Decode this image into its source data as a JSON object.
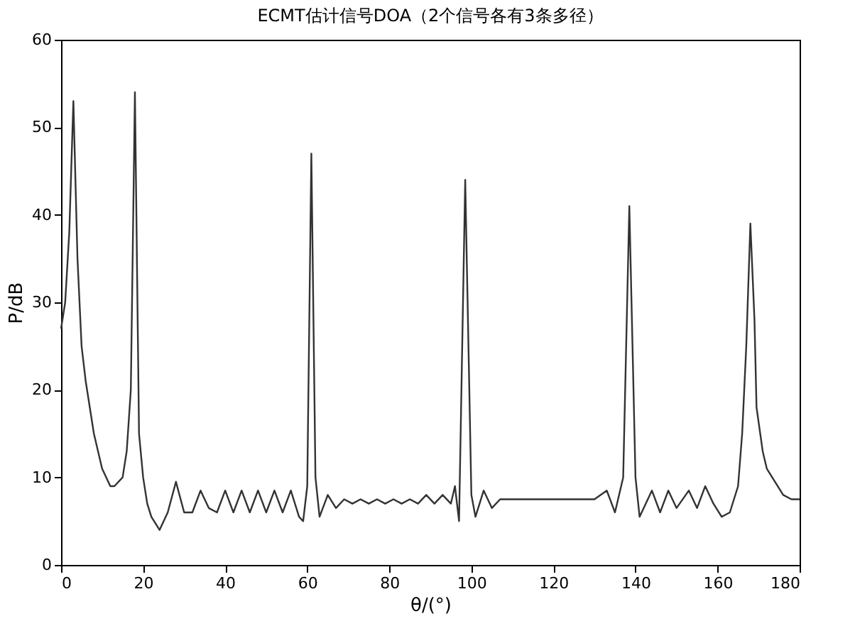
{
  "chart_data": {
    "type": "line",
    "title": "ECMT估计信号DOA（2个信号各有3条多径）",
    "xlabel": "θ/(°)",
    "ylabel": "P/dB",
    "xlim": [
      0,
      180
    ],
    "xticks": [
      0,
      20,
      40,
      60,
      80,
      100,
      120,
      140,
      160,
      180
    ],
    "ylim": [
      0,
      60
    ],
    "yticks": [
      0,
      10,
      20,
      30,
      40,
      50,
      60
    ],
    "grid": false,
    "series": [
      {
        "color": "#333333",
        "x": [
          0,
          1,
          2,
          3,
          4,
          5,
          6,
          8,
          10,
          12,
          13,
          15,
          16,
          17,
          18,
          19,
          20,
          21,
          22,
          24,
          26,
          28,
          30,
          32,
          34,
          36,
          38,
          40,
          42,
          44,
          46,
          48,
          50,
          52,
          54,
          56,
          58,
          59,
          60,
          61,
          62,
          63,
          65,
          67,
          69,
          71,
          73,
          75,
          77,
          79,
          81,
          83,
          85,
          87,
          89,
          91,
          93,
          95,
          96,
          97,
          98.5,
          100,
          101,
          103,
          105,
          107,
          110,
          115,
          120,
          125,
          130,
          133,
          135,
          137,
          138.5,
          140,
          141,
          144,
          146,
          148,
          150,
          153,
          155,
          157,
          159,
          161,
          163,
          165,
          166,
          167,
          168,
          169,
          169.5,
          171,
          172,
          174,
          176,
          178,
          180
        ],
        "values": [
          27,
          30,
          38,
          53,
          35,
          25,
          21,
          15,
          11,
          9,
          9,
          10,
          13,
          20,
          54,
          15,
          10,
          7,
          5.5,
          4,
          6,
          9.5,
          6,
          6,
          8.5,
          6.5,
          6,
          8.5,
          6,
          8.5,
          6,
          8.5,
          6,
          8.5,
          6,
          8.5,
          5.5,
          5,
          9,
          47,
          10,
          5.5,
          8,
          6.5,
          7.5,
          7,
          7.5,
          7,
          7.5,
          7,
          7.5,
          7,
          7.5,
          7,
          8,
          7,
          8,
          7,
          9,
          5,
          44,
          8,
          5.5,
          8.5,
          6.5,
          7.5,
          7.5,
          7.5,
          7.5,
          7.5,
          7.5,
          8.5,
          6,
          10,
          41,
          10,
          5.5,
          8.5,
          6,
          8.5,
          6.5,
          8.5,
          6.5,
          9,
          7,
          5.5,
          6,
          9,
          15,
          25,
          39,
          28,
          18,
          13,
          11,
          9.5,
          8,
          7.5,
          7.5
        ]
      }
    ]
  }
}
